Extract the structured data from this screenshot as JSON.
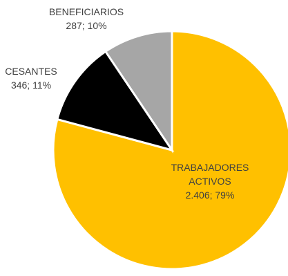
{
  "chart_data": {
    "type": "pie",
    "slices": [
      {
        "label": "TRABAJADORES ACTIVOS",
        "label_lines": [
          "TRABAJADORES",
          "ACTIVOS"
        ],
        "value": 2406,
        "value_text": "2.406",
        "percent": "79%",
        "color": "#FFC000",
        "label_style": "inside"
      },
      {
        "label": "CESANTES",
        "label_lines": [
          "CESANTES"
        ],
        "value": 346,
        "value_text": "346",
        "percent": "11%",
        "color": "#000000",
        "label_style": "outside"
      },
      {
        "label": "BENEFICIARIOS",
        "label_lines": [
          "BENEFICIARIOS"
        ],
        "value": 287,
        "value_text": "287",
        "percent": "10%",
        "color": "#A6A6A6",
        "label_style": "outside"
      }
    ],
    "start_angle_deg": 0,
    "direction": "clockwise",
    "legend": "none"
  }
}
